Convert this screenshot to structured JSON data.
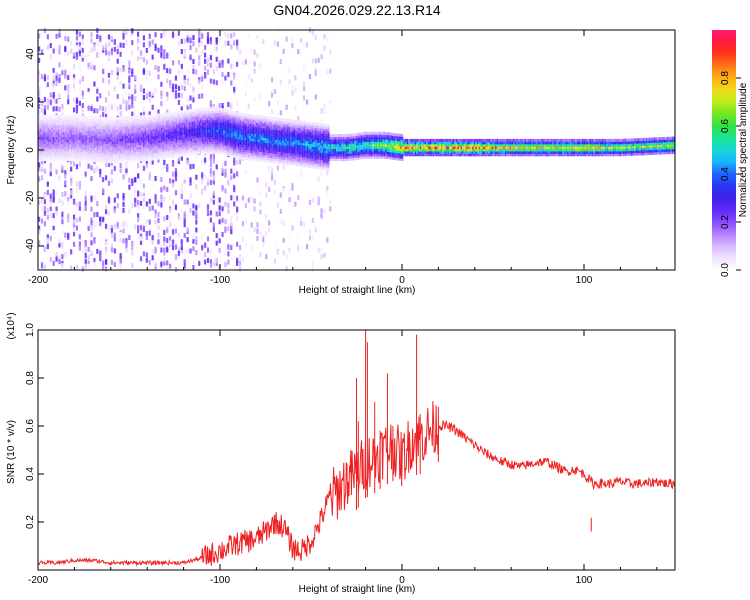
{
  "figure_title": "GN04.2026.029.22.13.R14",
  "colors": {
    "snr_line": "#ee2222",
    "colormap": [
      "#ffffff",
      "#e6d2ff",
      "#b27cff",
      "#6b2cff",
      "#3b1fe8",
      "#1f4bff",
      "#16c8ff",
      "#14e6a8",
      "#3ae02a",
      "#b6f01a",
      "#ffd21a",
      "#ff7a18",
      "#ff1a1a",
      "#ff1a78"
    ]
  },
  "chart_data": [
    {
      "type": "heatmap",
      "xlabel": "Height of straight line (km)",
      "ylabel": "Frequency (Hz)",
      "xlim": [
        -200,
        150
      ],
      "ylim": [
        -50,
        50
      ],
      "x_ticks": [
        -200,
        -100,
        0,
        100
      ],
      "y_ticks": [
        -40,
        -20,
        0,
        20,
        40
      ],
      "colorbar": {
        "label": "Normalized spectral amplitude",
        "range": [
          0,
          1
        ],
        "ticks": [
          "0.0",
          "0.2",
          "0.4",
          "0.6",
          "0.8"
        ]
      },
      "ridge": {
        "x": [
          -200,
          -180,
          -160,
          -140,
          -120,
          -110,
          -100,
          -90,
          -80,
          -70,
          -60,
          -50,
          -40,
          -30,
          -20,
          -10,
          0,
          20,
          40,
          60,
          80,
          100,
          120,
          150
        ],
        "center_hz": [
          5,
          5,
          4,
          5,
          7,
          8,
          8,
          6,
          5,
          4,
          3,
          2,
          1,
          1,
          2,
          2,
          1,
          1,
          1,
          1,
          1,
          1,
          1,
          2
        ],
        "amplitude": [
          0.22,
          0.2,
          0.22,
          0.25,
          0.3,
          0.35,
          0.42,
          0.45,
          0.46,
          0.45,
          0.47,
          0.5,
          0.55,
          0.6,
          0.62,
          0.7,
          0.88,
          0.9,
          0.92,
          0.8,
          0.78,
          0.82,
          0.72,
          0.76
        ]
      }
    },
    {
      "type": "line",
      "xlabel": "Height of straight line (km)",
      "ylabel": "SNR (10 * v/v)",
      "y_multiplier": "(x10⁴)",
      "xlim": [
        -200,
        150
      ],
      "ylim": [
        0,
        1.0
      ],
      "x_ticks": [
        -200,
        -100,
        0,
        100
      ],
      "y_ticks": [
        "0.2",
        "0.4",
        "0.6",
        "0.8",
        "1.0"
      ],
      "series": [
        {
          "x": [
            -200,
            -190,
            -180,
            -170,
            -160,
            -150,
            -140,
            -130,
            -120,
            -110,
            -100,
            -90,
            -80,
            -75,
            -70,
            -65,
            -60,
            -55,
            -50,
            -45,
            -40,
            -35,
            -30,
            -25,
            -20,
            -15,
            -10,
            -5,
            0,
            5,
            10,
            15,
            20,
            25,
            30,
            35,
            40,
            45,
            50,
            55,
            60,
            65,
            70,
            75,
            80,
            85,
            90,
            95,
            100,
            105,
            110,
            115,
            120,
            125,
            130,
            135,
            140,
            145,
            150
          ],
          "y": [
            0.03,
            0.03,
            0.04,
            0.04,
            0.03,
            0.03,
            0.03,
            0.03,
            0.03,
            0.05,
            0.08,
            0.11,
            0.13,
            0.16,
            0.2,
            0.18,
            0.09,
            0.08,
            0.12,
            0.2,
            0.3,
            0.33,
            0.38,
            0.4,
            0.45,
            0.47,
            0.5,
            0.52,
            0.46,
            0.54,
            0.55,
            0.58,
            0.6,
            0.6,
            0.58,
            0.55,
            0.52,
            0.49,
            0.47,
            0.45,
            0.44,
            0.43,
            0.44,
            0.45,
            0.45,
            0.43,
            0.41,
            0.42,
            0.4,
            0.36,
            0.36,
            0.36,
            0.37,
            0.36,
            0.36,
            0.36,
            0.37,
            0.36,
            0.36
          ]
        }
      ],
      "spikes": {
        "x": [
          -25,
          -24,
          -20,
          -19,
          -15,
          -12,
          -8,
          -5,
          8,
          10,
          20,
          104
        ],
        "y": [
          0.8,
          0.62,
          1.0,
          0.95,
          0.7,
          0.58,
          0.82,
          0.6,
          0.98,
          0.65,
          0.68,
          0.16
        ]
      }
    }
  ]
}
